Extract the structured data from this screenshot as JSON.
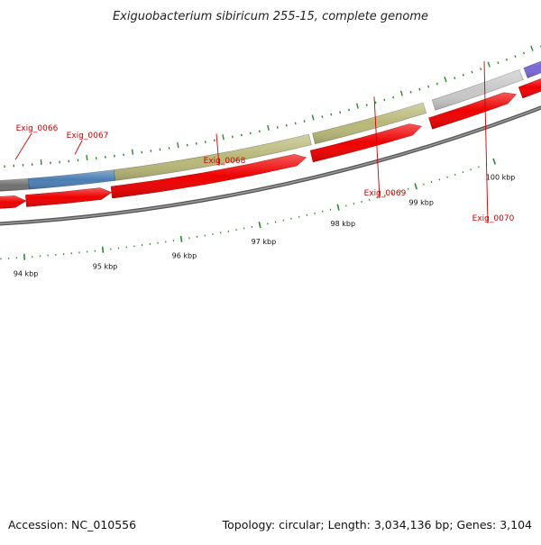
{
  "title": "Exiguobacterium sibiricum 255-15, complete genome",
  "footer": {
    "accession": "Accession: NC_010556",
    "summary": "Topology: circular; Length: 3,034,136 bp; Genes: 3,104"
  },
  "ruler_labels": [
    "94 kbp",
    "95 kbp",
    "96 kbp",
    "97 kbp",
    "98 kbp",
    "99 kbp",
    "100 kbp"
  ],
  "genes": [
    {
      "locus": "Exig_0066",
      "color": "#707070",
      "labeled": true
    },
    {
      "locus": "Exig_0067",
      "color": "#4a7fb5",
      "labeled": true
    },
    {
      "locus": "Exig_0068",
      "color": "#b8b878",
      "labeled": true
    },
    {
      "locus": "Exig_0069",
      "color": "#b8b878",
      "labeled": true
    },
    {
      "locus": "Exig_0070",
      "color": "#c8c8c8",
      "labeled": true
    },
    {
      "locus": "",
      "color": "#7b68d8",
      "labeled": false
    }
  ],
  "colors": {
    "cds_arrow": "#ee0000",
    "backbone": "#777777",
    "tick": "#2a8a2a",
    "gene_label": "#cc0000"
  }
}
